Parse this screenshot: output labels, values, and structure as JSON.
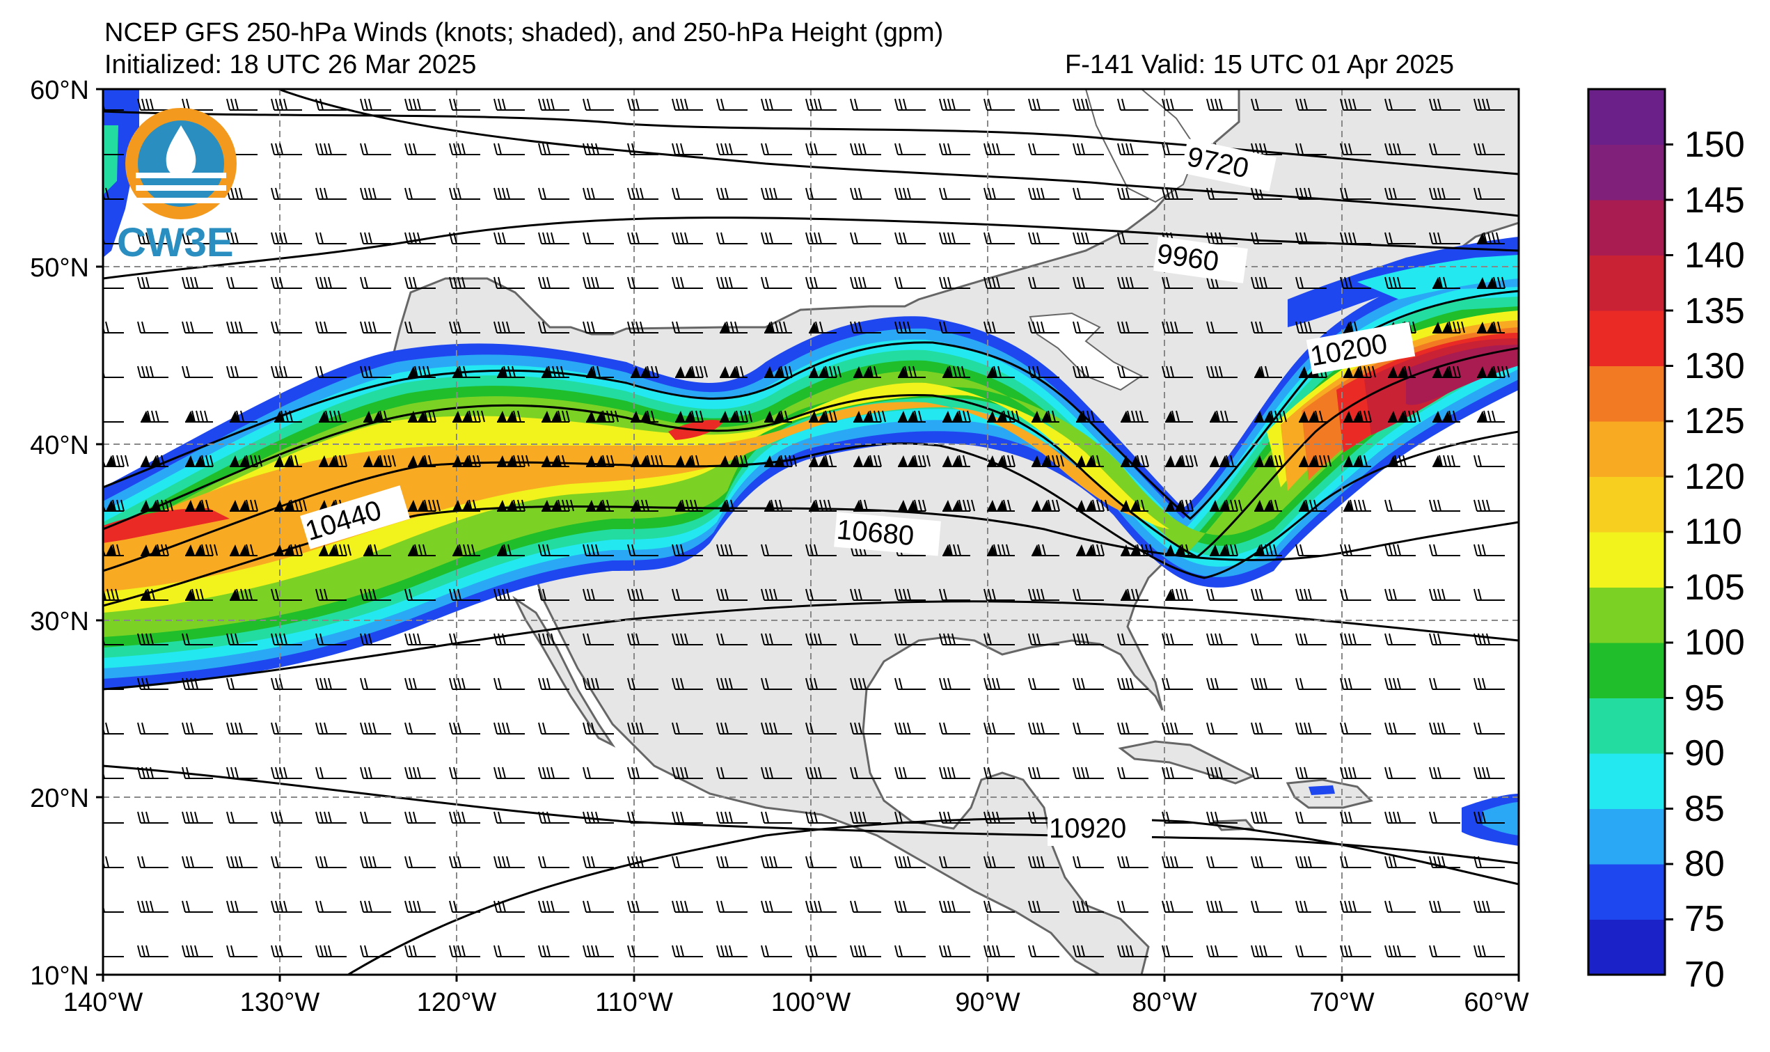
{
  "header": {
    "title_line1": "NCEP GFS 250-hPa Winds (knots; shaded), and 250-hPa Height (gpm)",
    "title_line2_left": "Initialized: 18 UTC 26 Mar 2025",
    "title_line2_right": "F-141  Valid: 15 UTC 01 Apr 2025"
  },
  "logo": {
    "text": "CW3E",
    "icon": "water-drop-logo-icon"
  },
  "map": {
    "lat_labels": [
      "60°N",
      "50°N",
      "40°N",
      "30°N",
      "20°N",
      "10°N"
    ],
    "lon_labels": [
      "140°W",
      "130°W",
      "120°W",
      "110°W",
      "100°W",
      "90°W",
      "80°W",
      "70°W",
      "60°W"
    ],
    "contour_labels": [
      "9720",
      "9960",
      "10200",
      "10440",
      "10680",
      "10920"
    ]
  },
  "colorbar": {
    "ticks": [
      "150",
      "145",
      "140",
      "135",
      "130",
      "125",
      "120",
      "110",
      "105",
      "100",
      "95",
      "90",
      "85",
      "80",
      "75",
      "70"
    ],
    "colors": [
      "#1a22c8",
      "#1f47f0",
      "#2aa8f5",
      "#23e8f0",
      "#22dca0",
      "#1fbe2a",
      "#7cd224",
      "#f2f21c",
      "#f7cf1f",
      "#f8aa22",
      "#f27a22",
      "#ea2a24",
      "#c92234",
      "#a81c52",
      "#80207a",
      "#6b1f88"
    ]
  }
}
